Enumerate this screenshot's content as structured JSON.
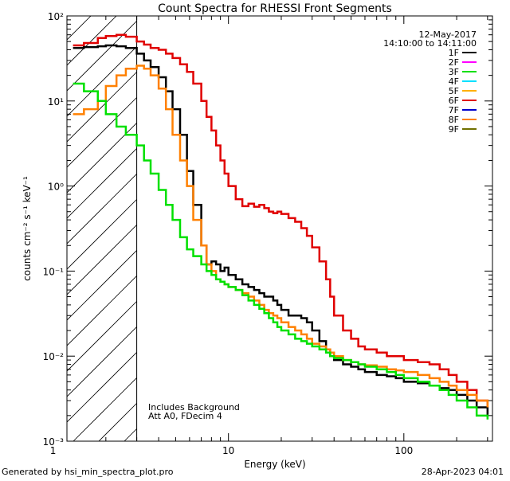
{
  "chart_data": {
    "type": "line",
    "title": "Count Spectra for RHESSI Front Segments",
    "xlabel": "Energy (keV)",
    "ylabel": "counts cm⁻² s⁻¹ keV⁻¹",
    "xscale": "log",
    "yscale": "log",
    "xlim": [
      1.2,
      320
    ],
    "ylim": [
      0.001,
      100
    ],
    "x_tick_labels": [
      "1",
      "10",
      "100"
    ],
    "y_tick_labels": [
      "10²",
      "10¹",
      "10⁰",
      "10⁻¹",
      "10⁻²",
      "10⁻³"
    ],
    "date": "12-May-2017",
    "time_range": "14:10:00 to 14:11:00",
    "annotations": [
      "Includes Background",
      "Att A0, FDecim 4"
    ],
    "footer_left": "Generated by hsi_min_spectra_plot.pro",
    "footer_right": "28-Apr-2023 04:01",
    "threshold_energy": 3,
    "legend": [
      {
        "name": "1F",
        "color": "#000000"
      },
      {
        "name": "2F",
        "color": "#ff00ff"
      },
      {
        "name": "3F",
        "color": "#00e000"
      },
      {
        "name": "4F",
        "color": "#00e0ff"
      },
      {
        "name": "5F",
        "color": "#ffb000"
      },
      {
        "name": "6F",
        "color": "#e00000"
      },
      {
        "name": "7F",
        "color": "#0000cc"
      },
      {
        "name": "8F",
        "color": "#ff8000"
      },
      {
        "name": "9F",
        "color": "#707000"
      }
    ],
    "series": [
      {
        "name": "6F",
        "color": "#e00000",
        "x": [
          1.3,
          1.5,
          1.8,
          2.0,
          2.3,
          2.6,
          3.0,
          3.3,
          3.6,
          4.0,
          4.4,
          4.8,
          5.3,
          5.8,
          6.3,
          7.0,
          7.5,
          8.0,
          8.5,
          9.0,
          9.5,
          10,
          11,
          12,
          13,
          14,
          15,
          16,
          17,
          18,
          19,
          20,
          22,
          24,
          26,
          28,
          30,
          33,
          36,
          38,
          40,
          45,
          50,
          55,
          60,
          70,
          80,
          90,
          100,
          120,
          140,
          160,
          180,
          200,
          230,
          260,
          300
        ],
        "values": [
          45,
          48,
          55,
          58,
          60,
          57,
          50,
          46,
          42,
          40,
          36,
          32,
          27,
          22,
          16,
          10,
          6.5,
          4.5,
          3.0,
          2.0,
          1.4,
          1.0,
          0.7,
          0.58,
          0.62,
          0.57,
          0.6,
          0.55,
          0.5,
          0.48,
          0.5,
          0.47,
          0.42,
          0.38,
          0.32,
          0.26,
          0.19,
          0.13,
          0.08,
          0.05,
          0.03,
          0.02,
          0.016,
          0.013,
          0.012,
          0.011,
          0.01,
          0.01,
          0.009,
          0.0085,
          0.008,
          0.007,
          0.006,
          0.005,
          0.004,
          0.003,
          0.0025
        ]
      },
      {
        "name": "1F",
        "color": "#000000",
        "x": [
          1.3,
          1.5,
          1.8,
          2.0,
          2.3,
          2.6,
          3.0,
          3.3,
          3.6,
          4.0,
          4.4,
          4.8,
          5.3,
          5.8,
          6.3,
          7.0,
          7.5,
          8.0,
          8.5,
          9.0,
          9.5,
          10,
          11,
          12,
          13,
          14,
          15,
          16,
          17,
          18,
          19,
          20,
          22,
          24,
          26,
          28,
          30,
          33,
          36,
          38,
          40,
          45,
          50,
          55,
          60,
          70,
          80,
          90,
          100,
          120,
          140,
          160,
          180,
          200,
          230,
          260,
          300
        ],
        "values": [
          42,
          43,
          44,
          45,
          44,
          42,
          36,
          30,
          25,
          19,
          13,
          8,
          4,
          1.5,
          0.6,
          0.2,
          0.12,
          0.13,
          0.12,
          0.1,
          0.11,
          0.09,
          0.08,
          0.07,
          0.065,
          0.06,
          0.055,
          0.05,
          0.05,
          0.045,
          0.04,
          0.035,
          0.03,
          0.03,
          0.028,
          0.025,
          0.02,
          0.015,
          0.012,
          0.01,
          0.009,
          0.008,
          0.0075,
          0.007,
          0.0065,
          0.006,
          0.0058,
          0.0055,
          0.005,
          0.0048,
          0.0045,
          0.0042,
          0.004,
          0.0035,
          0.003,
          0.0025,
          0.002
        ]
      },
      {
        "name": "8F",
        "color": "#ff8000",
        "x": [
          1.3,
          1.5,
          1.8,
          2.0,
          2.3,
          2.6,
          3.0,
          3.3,
          3.6,
          4.0,
          4.4,
          4.8,
          5.3,
          5.8,
          6.3,
          7.0,
          7.5,
          8.0,
          8.5,
          9.0,
          9.5,
          10,
          11,
          12,
          13,
          14,
          15,
          16,
          17,
          18,
          19,
          20,
          22,
          24,
          26,
          28,
          30,
          33,
          36,
          38,
          40,
          45,
          50,
          55,
          60,
          70,
          80,
          90,
          100,
          120,
          140,
          160,
          180,
          200,
          230,
          260,
          300
        ],
        "values": [
          7,
          8,
          10,
          15,
          20,
          24,
          26,
          24,
          20,
          14,
          8,
          4,
          2,
          1,
          0.4,
          0.2,
          0.12,
          0.1,
          0.08,
          0.075,
          0.07,
          0.065,
          0.06,
          0.055,
          0.05,
          0.045,
          0.04,
          0.035,
          0.032,
          0.03,
          0.028,
          0.025,
          0.022,
          0.02,
          0.018,
          0.016,
          0.014,
          0.013,
          0.012,
          0.011,
          0.01,
          0.009,
          0.0085,
          0.008,
          0.0078,
          0.0075,
          0.007,
          0.0068,
          0.0065,
          0.006,
          0.0055,
          0.005,
          0.0045,
          0.004,
          0.0035,
          0.003,
          0.0025
        ]
      },
      {
        "name": "3F",
        "color": "#00e000",
        "x": [
          1.3,
          1.5,
          1.8,
          2.0,
          2.3,
          2.6,
          3.0,
          3.3,
          3.6,
          4.0,
          4.4,
          4.8,
          5.3,
          5.8,
          6.3,
          7.0,
          7.5,
          8.0,
          8.5,
          9.0,
          9.5,
          10,
          11,
          12,
          13,
          14,
          15,
          16,
          17,
          18,
          19,
          20,
          22,
          24,
          26,
          28,
          30,
          33,
          36,
          38,
          40,
          45,
          50,
          55,
          60,
          70,
          80,
          90,
          100,
          120,
          140,
          160,
          180,
          200,
          230,
          260,
          300
        ],
        "values": [
          16,
          13,
          10,
          7,
          5,
          4,
          3,
          2,
          1.4,
          0.9,
          0.6,
          0.4,
          0.25,
          0.18,
          0.15,
          0.12,
          0.1,
          0.09,
          0.08,
          0.075,
          0.07,
          0.065,
          0.06,
          0.052,
          0.045,
          0.04,
          0.036,
          0.032,
          0.028,
          0.025,
          0.022,
          0.02,
          0.018,
          0.016,
          0.015,
          0.014,
          0.013,
          0.012,
          0.011,
          0.01,
          0.0095,
          0.009,
          0.0085,
          0.008,
          0.0075,
          0.007,
          0.0065,
          0.006,
          0.0055,
          0.005,
          0.0045,
          0.004,
          0.0035,
          0.003,
          0.0025,
          0.002,
          0.0018
        ]
      }
    ]
  }
}
